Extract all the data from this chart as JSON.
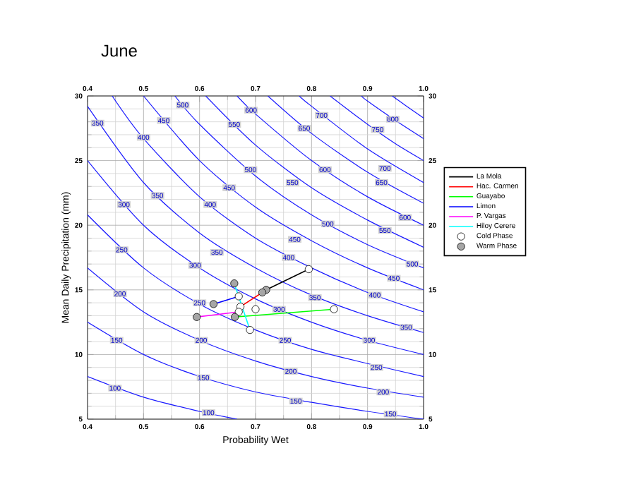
{
  "chart_data": {
    "type": "line",
    "title": "June",
    "xlabel": "Probability Wet",
    "ylabel": "Mean Daily Precipitation (mm)",
    "xlim": [
      0.4,
      1.0
    ],
    "xticks": [
      0.4,
      0.5,
      0.6,
      0.7,
      0.8,
      0.9,
      {
        "value": 1.0,
        "label": "1.0"
      }
    ],
    "x2lim": [
      0.4,
      1.0
    ],
    "x2ticks": [
      0.4,
      0.5,
      0.6,
      0.7,
      0.8,
      0.9,
      {
        "value": 1.0,
        "label": "1.0"
      }
    ],
    "ylim": [
      5,
      30
    ],
    "yticks": [
      5,
      10,
      15,
      20,
      25,
      30
    ],
    "y2lim": [
      5,
      30
    ],
    "y2ticks": [
      5,
      10,
      15,
      20,
      25,
      30
    ],
    "grid": true,
    "legend": "right",
    "line_style": "solid",
    "series": [
      {
        "color": "#1a1aff",
        "x": [
          0.4,
          0.5,
          0.6,
          0.667
        ],
        "values": [
          8.3,
          6.7,
          5.6,
          5.0
        ]
      },
      {
        "color": "#1a1aff",
        "x": [
          0.4,
          0.5,
          0.6,
          0.7,
          0.8,
          0.9,
          1.0
        ],
        "values": [
          12.5,
          10.0,
          8.3,
          7.1,
          6.3,
          5.6,
          5.0
        ]
      },
      {
        "color": "#1a1aff",
        "x": [
          0.4,
          0.5,
          0.6,
          0.7,
          0.8,
          0.9,
          1.0
        ],
        "values": [
          16.7,
          13.3,
          11.1,
          9.5,
          8.3,
          7.4,
          6.7
        ]
      },
      {
        "color": "#1a1aff",
        "x": [
          0.4,
          0.5,
          0.6,
          0.7,
          0.8,
          0.9,
          1.0
        ],
        "values": [
          20.8,
          16.7,
          13.9,
          11.9,
          10.4,
          9.3,
          8.3
        ]
      },
      {
        "color": "#1a1aff",
        "x": [
          0.4,
          0.5,
          0.6,
          0.7,
          0.8,
          0.9,
          1.0
        ],
        "values": [
          25.0,
          20.0,
          16.7,
          14.3,
          12.5,
          11.1,
          10.0
        ]
      },
      {
        "color": "#1a1aff",
        "x": [
          0.4,
          0.5,
          0.6,
          0.7,
          0.8,
          0.9,
          1.0
        ],
        "values": [
          29.2,
          23.3,
          19.4,
          16.7,
          14.6,
          13.0,
          11.7
        ]
      },
      {
        "color": "#1a1aff",
        "x": [
          0.444,
          0.5,
          0.6,
          0.7,
          0.8,
          0.9,
          1.0
        ],
        "values": [
          30.0,
          26.7,
          22.2,
          19.0,
          16.7,
          14.8,
          13.3
        ]
      },
      {
        "color": "#1a1aff",
        "x": [
          0.5,
          0.6,
          0.7,
          0.8,
          0.9,
          1.0
        ],
        "values": [
          30.0,
          25.0,
          21.4,
          18.8,
          16.7,
          15.0
        ]
      },
      {
        "color": "#1a1aff",
        "x": [
          0.556,
          0.6,
          0.7,
          0.8,
          0.9,
          1.0
        ],
        "values": [
          30.0,
          27.8,
          23.8,
          20.8,
          18.5,
          16.7
        ]
      },
      {
        "color": "#1a1aff",
        "x": [
          0.611,
          0.7,
          0.8,
          0.9,
          1.0
        ],
        "values": [
          30.0,
          26.2,
          22.9,
          20.4,
          18.3
        ]
      },
      {
        "color": "#1a1aff",
        "x": [
          0.667,
          0.7,
          0.8,
          0.9,
          1.0
        ],
        "values": [
          30.0,
          28.6,
          25.0,
          22.2,
          20.0
        ]
      },
      {
        "color": "#1a1aff",
        "x": [
          0.722,
          0.8,
          0.9,
          1.0
        ],
        "values": [
          30.0,
          27.1,
          24.1,
          21.7
        ]
      },
      {
        "color": "#1a1aff",
        "x": [
          0.778,
          0.8,
          0.9,
          1.0
        ],
        "values": [
          30.0,
          29.2,
          25.9,
          23.3
        ]
      },
      {
        "color": "#1a1aff",
        "x": [
          0.833,
          0.9,
          0.95,
          1.0
        ],
        "values": [
          30.0,
          27.8,
          26.3,
          25.0
        ]
      },
      {
        "color": "#1a1aff",
        "x": [
          0.889,
          0.9,
          0.95,
          1.0
        ],
        "values": [
          30.0,
          29.6,
          28.1,
          26.7
        ]
      },
      {
        "color": "#1a1aff",
        "x": [
          0.944,
          0.97,
          1.0
        ],
        "values": [
          30.0,
          29.2,
          28.3
        ]
      },
      {
        "name": "La Mola",
        "color": "#000000",
        "x": [
          0.719,
          0.795
        ],
        "values": [
          15.0,
          16.6
        ]
      },
      {
        "name": "Hac. Carmen",
        "color": "#ff0000",
        "x": [
          0.712,
          0.673
        ],
        "values": [
          14.8,
          13.7
        ]
      },
      {
        "name": "Guayabo",
        "color": "#00ff00",
        "x": [
          0.663,
          0.84
        ],
        "values": [
          12.9,
          13.5
        ]
      },
      {
        "name": "Limon",
        "color": "#0000ff",
        "x": [
          0.625,
          0.67
        ],
        "values": [
          13.9,
          14.5
        ]
      },
      {
        "name": "P. Vargas",
        "color": "#ff00ff",
        "x": [
          0.595,
          0.67
        ],
        "values": [
          12.9,
          13.3
        ]
      },
      {
        "name": "Hiloy Cerere",
        "color": "#00ffff",
        "x": [
          0.662,
          0.69
        ],
        "values": [
          15.5,
          11.9
        ]
      },
      {
        "name": "Cold Phase",
        "type": "scatter",
        "color": "#ffffff",
        "x": [
          0.795,
          0.673,
          0.84,
          0.67,
          0.67,
          0.69,
          0.7
        ],
        "values": [
          16.6,
          13.7,
          13.5,
          14.5,
          13.3,
          11.9,
          13.5
        ]
      },
      {
        "name": "Warm Phase",
        "type": "scatter",
        "color": "#a6a6a6",
        "x": [
          0.719,
          0.712,
          0.663,
          0.625,
          0.595,
          0.662
        ],
        "values": [
          15.0,
          14.8,
          12.9,
          13.9,
          12.9,
          15.5
        ]
      }
    ],
    "annotations": [
      {
        "text": "350",
        "x": 0.418,
        "y": 27.9
      },
      {
        "text": "450",
        "x": 0.536,
        "y": 28.1
      },
      {
        "text": "500",
        "x": 0.57,
        "y": 29.3
      },
      {
        "text": "600",
        "x": 0.692,
        "y": 28.9
      },
      {
        "text": "550",
        "x": 0.662,
        "y": 27.8
      },
      {
        "text": "700",
        "x": 0.818,
        "y": 28.5
      },
      {
        "text": "650",
        "x": 0.787,
        "y": 27.5
      },
      {
        "text": "800",
        "x": 0.945,
        "y": 28.2
      },
      {
        "text": "750",
        "x": 0.918,
        "y": 27.4
      },
      {
        "text": "400",
        "x": 0.5,
        "y": 26.8
      },
      {
        "text": "500",
        "x": 0.691,
        "y": 24.3
      },
      {
        "text": "600",
        "x": 0.824,
        "y": 24.3
      },
      {
        "text": "700",
        "x": 0.931,
        "y": 24.4
      },
      {
        "text": "450",
        "x": 0.653,
        "y": 22.9
      },
      {
        "text": "550",
        "x": 0.766,
        "y": 23.3
      },
      {
        "text": "650",
        "x": 0.925,
        "y": 23.3
      },
      {
        "text": "350",
        "x": 0.525,
        "y": 22.3
      },
      {
        "text": "300",
        "x": 0.465,
        "y": 21.6
      },
      {
        "text": "400",
        "x": 0.619,
        "y": 21.6
      },
      {
        "text": "500",
        "x": 0.829,
        "y": 20.1
      },
      {
        "text": "600",
        "x": 0.967,
        "y": 20.6
      },
      {
        "text": "550",
        "x": 0.931,
        "y": 19.6
      },
      {
        "text": "450",
        "x": 0.77,
        "y": 18.9
      },
      {
        "text": "250",
        "x": 0.461,
        "y": 18.1
      },
      {
        "text": "350",
        "x": 0.631,
        "y": 17.9
      },
      {
        "text": "300",
        "x": 0.592,
        "y": 16.9
      },
      {
        "text": "400",
        "x": 0.759,
        "y": 17.5
      },
      {
        "text": "500",
        "x": 0.98,
        "y": 17.0
      },
      {
        "text": "450",
        "x": 0.947,
        "y": 15.9
      },
      {
        "text": "200",
        "x": 0.458,
        "y": 14.7
      },
      {
        "text": "250",
        "x": 0.6,
        "y": 14.0
      },
      {
        "text": "300",
        "x": 0.742,
        "y": 13.5
      },
      {
        "text": "350",
        "x": 0.806,
        "y": 14.4
      },
      {
        "text": "400",
        "x": 0.913,
        "y": 14.6
      },
      {
        "text": "350",
        "x": 0.969,
        "y": 12.1
      },
      {
        "text": "150",
        "x": 0.452,
        "y": 11.1
      },
      {
        "text": "200",
        "x": 0.603,
        "y": 11.1
      },
      {
        "text": "250",
        "x": 0.753,
        "y": 11.1
      },
      {
        "text": "300",
        "x": 0.903,
        "y": 11.1
      },
      {
        "text": "150",
        "x": 0.607,
        "y": 8.2
      },
      {
        "text": "200",
        "x": 0.763,
        "y": 8.7
      },
      {
        "text": "250",
        "x": 0.916,
        "y": 9.0
      },
      {
        "text": "100",
        "x": 0.449,
        "y": 7.4
      },
      {
        "text": "150",
        "x": 0.772,
        "y": 6.4
      },
      {
        "text": "200",
        "x": 0.928,
        "y": 7.1
      },
      {
        "text": "100",
        "x": 0.616,
        "y": 5.5
      },
      {
        "text": "150",
        "x": 0.941,
        "y": 5.4
      }
    ]
  }
}
